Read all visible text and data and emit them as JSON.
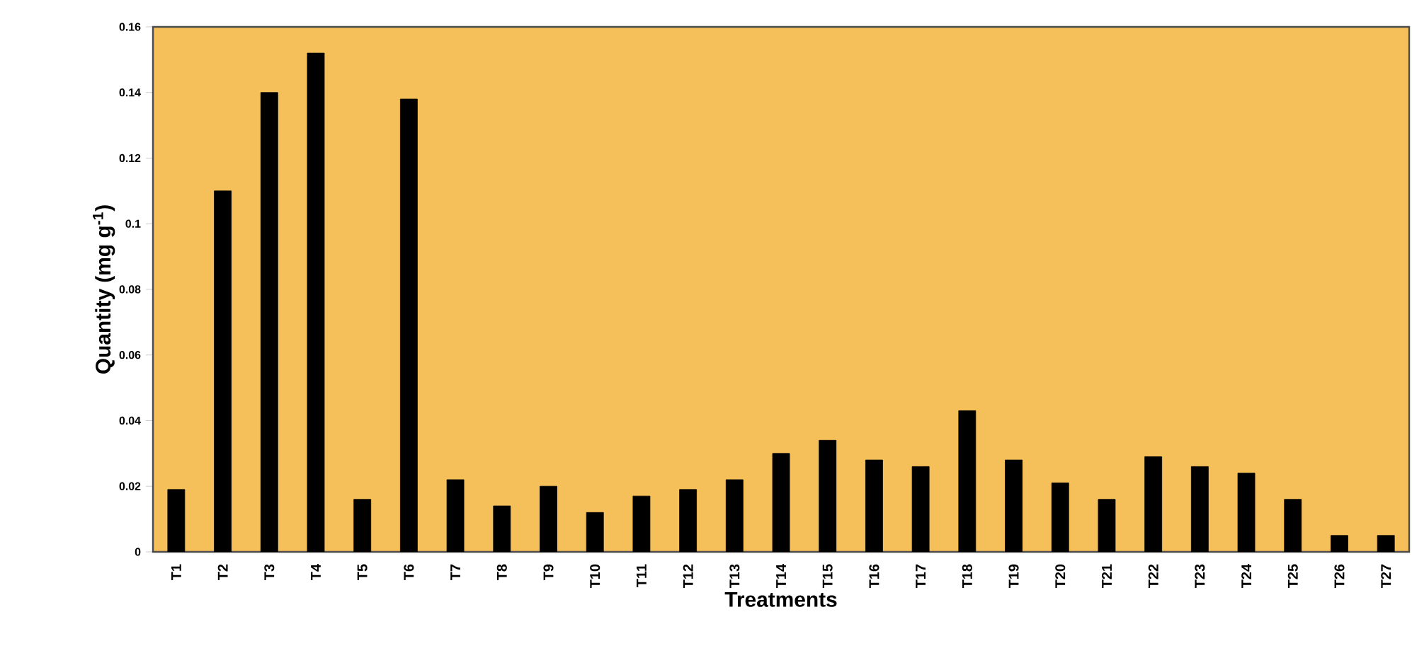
{
  "chart_data": {
    "type": "bar",
    "xlabel": "Treatments",
    "ylabel": "Quantity (mg g$^{-1}$)",
    "categories": [
      "T1",
      "T2",
      "T3",
      "T4",
      "T5",
      "T6",
      "T7",
      "T8",
      "T9",
      "T10",
      "T11",
      "T12",
      "T13",
      "T14",
      "T15",
      "T16",
      "T17",
      "T18",
      "T19",
      "T20",
      "T21",
      "T22",
      "T23",
      "T24",
      "T25",
      "T26",
      "T27"
    ],
    "values": [
      0.019,
      0.11,
      0.14,
      0.152,
      0.016,
      0.138,
      0.022,
      0.014,
      0.02,
      0.012,
      0.017,
      0.019,
      0.022,
      0.03,
      0.034,
      0.028,
      0.026,
      0.043,
      0.028,
      0.021,
      0.016,
      0.029,
      0.026,
      0.024,
      0.016,
      0.005,
      0.005
    ],
    "color": "#000000",
    "ylim": [
      0,
      0.16
    ],
    "yticks": [
      0,
      0.02,
      0.04,
      0.06,
      0.08,
      0.1,
      0.12,
      0.14,
      0.16
    ]
  }
}
